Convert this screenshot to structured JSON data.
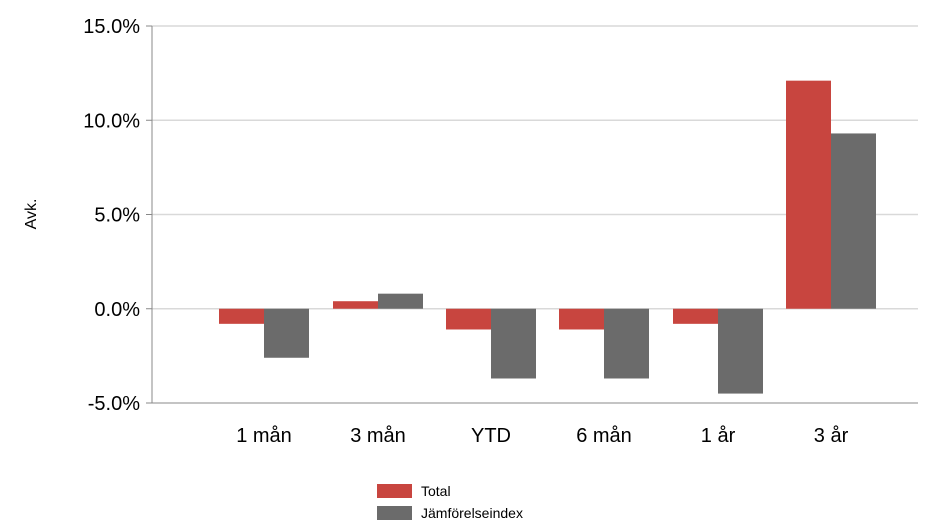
{
  "chart_data": {
    "type": "bar",
    "title": "",
    "xlabel": "",
    "ylabel": "Avk.",
    "categories": [
      "1 mån",
      "3 mån",
      "YTD",
      "6 mån",
      "1 år",
      "3 år"
    ],
    "series": [
      {
        "name": "Total",
        "color": "#c8453f",
        "values": [
          -0.8,
          0.4,
          -1.1,
          -1.1,
          -0.8,
          12.1
        ]
      },
      {
        "name": "Jämförelseindex",
        "color": "#6b6b6b",
        "values": [
          -2.6,
          0.8,
          -3.7,
          -3.7,
          -4.5,
          9.3
        ]
      }
    ],
    "ylim": [
      -5,
      15
    ],
    "yticks": [
      "15.0%",
      "10.0%",
      "5.0%",
      "0.0%",
      "-5.0%"
    ],
    "ytick_values": [
      15,
      10,
      5,
      0,
      -5
    ],
    "grid": true,
    "legend_position": "bottom-center"
  }
}
